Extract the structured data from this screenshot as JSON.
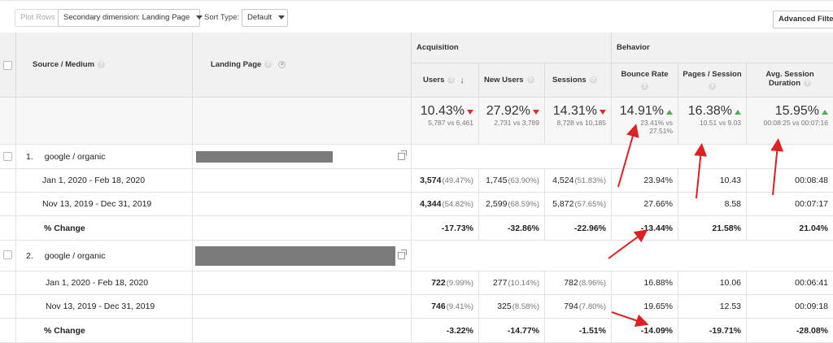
{
  "toolbar": {
    "plot_rows": "Plot Rows",
    "secondary_dimension": "Secondary dimension: Landing Page",
    "sort_type_label": "Sort Type:",
    "sort_type_value": "Default",
    "advanced_filter": "Advanced Filter O"
  },
  "headers": {
    "source_medium": "Source / Medium",
    "landing_page": "Landing Page",
    "acquisition": "Acquisition",
    "behavior": "Behavior",
    "users": "Users",
    "new_users": "New Users",
    "sessions": "Sessions",
    "bounce_rate": "Bounce Rate",
    "pages_session": "Pages / Session",
    "avg_session_1": "Avg. Session",
    "avg_session_2": "Duration",
    "help": "?"
  },
  "summary": {
    "users": {
      "value": "10.43%",
      "sub": "5,787 vs 6,461"
    },
    "new_users": {
      "value": "27.92%",
      "sub": "2,731 vs 3,789"
    },
    "sessions": {
      "value": "14.31%",
      "sub": "8,728 vs 10,185"
    },
    "bounce_rate": {
      "value": "14.91%",
      "sub1": "23.41% vs",
      "sub2": "27.51%"
    },
    "pages_session": {
      "value": "16.38%",
      "sub": "10.51 vs 9.03"
    },
    "avg_duration": {
      "value": "15.95%",
      "sub": "00:08:25 vs 00:07:16"
    }
  },
  "groups": [
    {
      "index": "1.",
      "source": "google / organic",
      "rows": [
        {
          "label": "Jan 1, 2020 - Feb 18, 2020",
          "users": "3,574",
          "users_pct": "(49.47%)",
          "new_users": "1,745",
          "new_users_pct": "(63.90%)",
          "sessions": "4,524",
          "sessions_pct": "(51.83%)",
          "bounce": "23.94%",
          "pages": "10.43",
          "duration": "00:08:48"
        },
        {
          "label": "Nov 13, 2019 - Dec 31, 2019",
          "users": "4,344",
          "users_pct": "(54.82%)",
          "new_users": "2,599",
          "new_users_pct": "(68.59%)",
          "sessions": "5,872",
          "sessions_pct": "(57.65%)",
          "bounce": "27.66%",
          "pages": "8.58",
          "duration": "00:07:17"
        }
      ],
      "change": {
        "label": "% Change",
        "users": "-17.73%",
        "new_users": "-32.86%",
        "sessions": "-22.96%",
        "bounce": "-13.44%",
        "pages": "21.58%",
        "duration": "21.04%"
      }
    },
    {
      "index": "2.",
      "source": "google / organic",
      "rows": [
        {
          "label": "Jan 1, 2020 - Feb 18, 2020",
          "users": "722",
          "users_pct": "(9.99%)",
          "new_users": "277",
          "new_users_pct": "(10.14%)",
          "sessions": "782",
          "sessions_pct": "(8.96%)",
          "bounce": "16.88%",
          "pages": "10.06",
          "duration": "00:06:41"
        },
        {
          "label": "Nov 13, 2019 - Dec 31, 2019",
          "users": "746",
          "users_pct": "(9.41%)",
          "new_users": "325",
          "new_users_pct": "(8.58%)",
          "sessions": "794",
          "sessions_pct": "(7.80%)",
          "bounce": "19.65%",
          "pages": "12.53",
          "duration": "00:09:18"
        }
      ],
      "change": {
        "label": "% Change",
        "users": "-3.22%",
        "new_users": "-14.77%",
        "sessions": "-1.51%",
        "bounce": "-14.09%",
        "pages": "-19.71%",
        "duration": "-28.08%"
      }
    }
  ],
  "colors": {
    "annotation": "#e02020",
    "up": "#4caf50",
    "down": "#d93025",
    "header_bg": "#f1f1f1"
  }
}
